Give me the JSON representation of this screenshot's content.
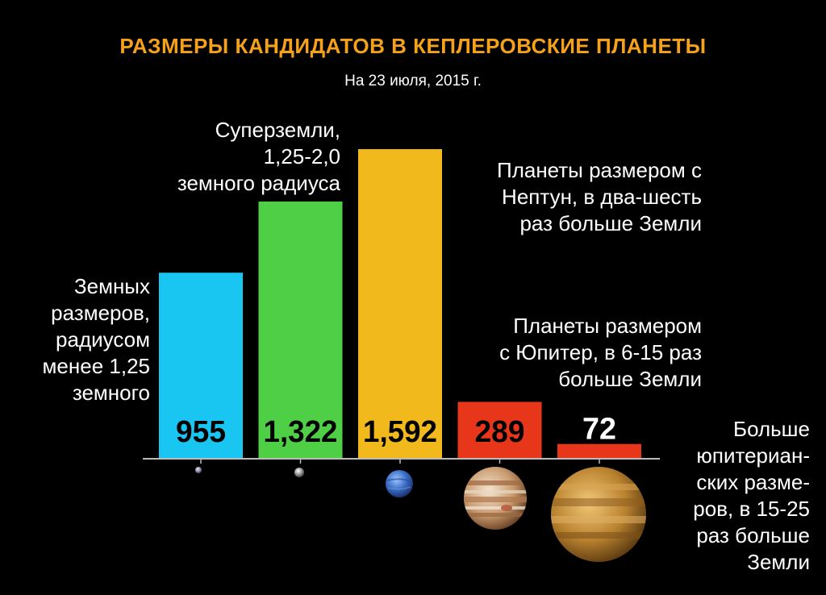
{
  "header": {
    "title": "РАЗМЕРЫ КАНДИДАТОВ В КЕПЛЕРОВСКИЕ ПЛАНЕТЫ",
    "subtitle": "На 23 июля, 2015 г."
  },
  "annotations": {
    "earth": [
      "Земных",
      "размеров,",
      "радиусом",
      "менее 1,25",
      "земного"
    ],
    "superearth": [
      "Суперземли,",
      "1,25-2,0",
      "земного радиуса"
    ],
    "neptune": [
      "Планеты размером с",
      "Нептун, в два-шесть",
      "раз больше Земли"
    ],
    "jupiter": [
      "Планеты размером",
      "с Юпитер, в 6-15 раз",
      "больше Земли"
    ],
    "larger": [
      "Больше",
      "юпитериан-",
      "ских разме-",
      "ров, в 15-25",
      "раз больше",
      "Земли"
    ]
  },
  "chart_data": {
    "type": "bar",
    "title": "РАЗМЕРЫ КАНДИДАТОВ В КЕПЛЕРОВСКИЕ ПЛАНЕТЫ",
    "subtitle": "На 23 июля, 2015 г.",
    "categories": [
      "Земных размеров",
      "Суперземли",
      "Планеты размером с Нептун",
      "Планеты размером с Юпитер",
      "Больше юпитерианских размеров"
    ],
    "values": [
      955,
      1322,
      1592,
      289,
      72
    ],
    "value_labels": [
      "955",
      "1,322",
      "1,592",
      "289",
      "72"
    ],
    "colors": [
      "#19c6f2",
      "#4fcf45",
      "#f2b91d",
      "#e8361b",
      "#e8361b"
    ],
    "icons": [
      "earth-planet-icon",
      "superearth-planet-icon",
      "neptune-planet-icon",
      "jupiter-planet-icon",
      "super-jupiter-planet-icon"
    ],
    "ylim": [
      0,
      1700
    ],
    "grid": false,
    "legend": "none"
  }
}
